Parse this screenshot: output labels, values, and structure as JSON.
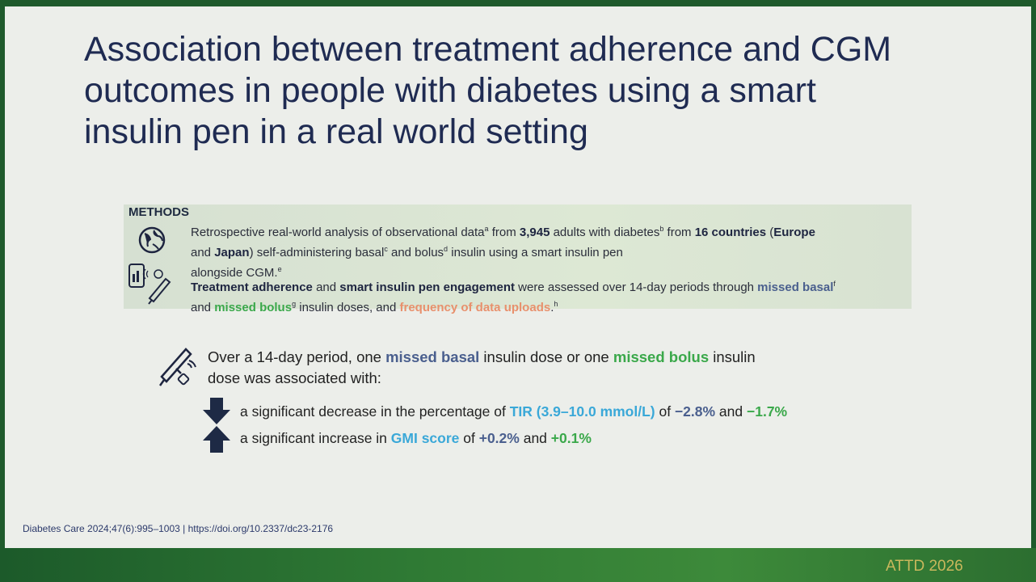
{
  "title": {
    "lines": [
      "Association between treatment adherence and CGM",
      "outcomes in people with diabetes using a smart",
      "insulin pen in a real world setting"
    ]
  },
  "methods": {
    "heading": "METHODS",
    "paragraphs": [
      [
        "Retrospective real-world analysis of observational data",
        "a",
        " from ",
        "3,945",
        " adults with diabetes",
        "b",
        " from ",
        "16 countries",
        " (",
        "Europe",
        " and ",
        "Japan",
        ") self-administering basal",
        "c",
        " and bolus",
        "d",
        " insulin using a smart insulin pen",
        "alongside CGM.",
        "e"
      ],
      [
        "Treatment adherence",
        " and ",
        "smart insulin pen engagement",
        " were assessed over 14-day periods through ",
        "missed basal",
        "f",
        " and ",
        "missed bolus",
        "g",
        " insulin doses, and ",
        "frequency of data uploads",
        ".",
        "h"
      ]
    ]
  },
  "findings": {
    "intro": [
      "Over a 14-day period, one ",
      "missed basal",
      " insulin dose or one ",
      "missed bolus",
      " insulin",
      "dose was associated with:"
    ],
    "bullets": [
      [
        "a significant decrease in the percentage of ",
        "TIR (3.9–10.0 mmol/L)",
        " of ",
        "−2.8%",
        " and ",
        "−1.7%"
      ],
      [
        "a significant increase in ",
        "GMI score",
        " of ",
        "+0.2%",
        " and ",
        "+0.1%"
      ]
    ]
  },
  "footer": {
    "citation": "Diabetes Care 2024;47(6):995–1003 | https://doi.org/10.2337/dc23-2176",
    "brand": "ATTD 2026"
  }
}
